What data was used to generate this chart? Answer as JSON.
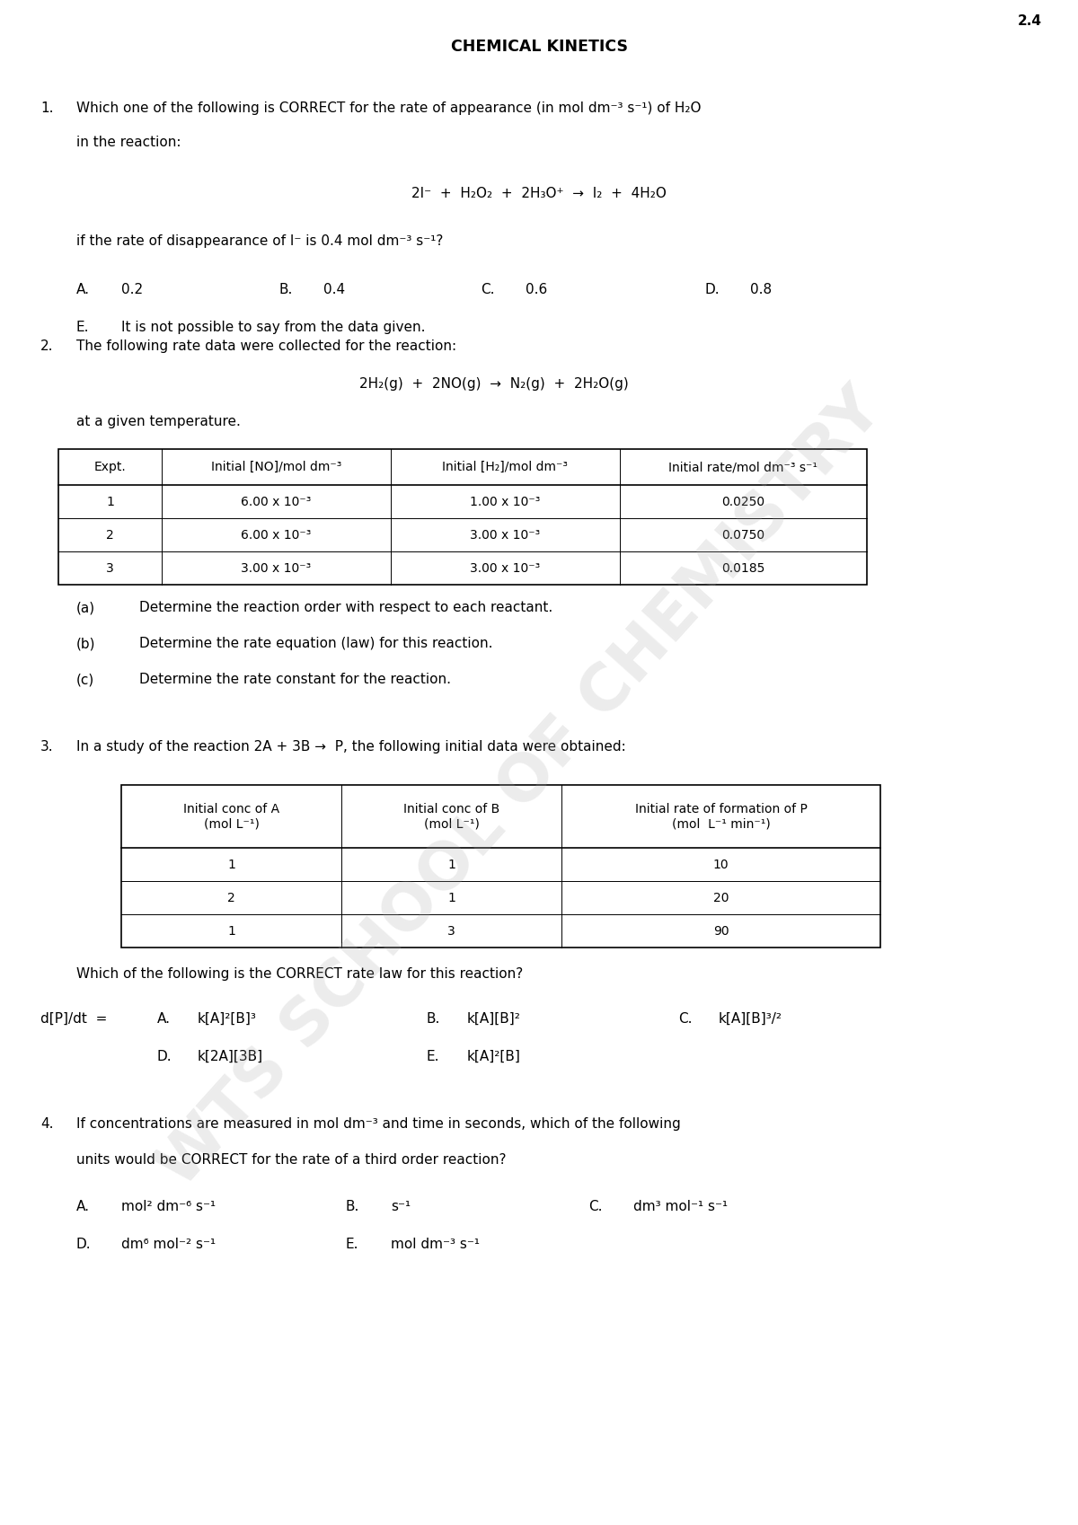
{
  "page_number": "2.4",
  "title": "CHEMICAL KINETICS",
  "background_color": "#ffffff",
  "watermark_text": "WTS SCHOOL OF CHEMISTRY",
  "q1": {
    "number": "1.",
    "line1": "Which one of the following is CORRECT for the rate of appearance (in mol dm⁻³ s⁻¹) of H₂O",
    "line2": "in the reaction:",
    "equation": "2I⁻  +  H₂O₂  +  2H₃O⁺  →  I₂  +  4H₂O",
    "cond": "if the rate of disappearance of I⁻ is 0.4 mol dm⁻³ s⁻¹?",
    "opt_row1": [
      [
        "A.",
        "0.2"
      ],
      [
        "B.",
        "0.4"
      ],
      [
        "C.",
        "0.6"
      ],
      [
        "D.",
        "0.8"
      ]
    ],
    "opt_row2": [
      [
        "E.",
        "It is not possible to say from the data given."
      ]
    ]
  },
  "q2": {
    "number": "2.",
    "line1": "The following rate data were collected for the reaction:",
    "equation": "2H₂(g)  +  2NO(g)  →  N₂(g)  +  2H₂O(g)",
    "line2": "at a given temperature.",
    "table_headers": [
      "Expt.",
      "Initial [NO]/mol dm⁻³",
      "Initial [H₂]/mol dm⁻³",
      "Initial rate/mol dm⁻³ s⁻¹"
    ],
    "table_data": [
      [
        "1",
        "6.00 x 10⁻³",
        "1.00 x 10⁻³",
        "0.0250"
      ],
      [
        "2",
        "6.00 x 10⁻³",
        "3.00 x 10⁻³",
        "0.0750"
      ],
      [
        "3",
        "3.00 x 10⁻³",
        "3.00 x 10⁻³",
        "0.0185"
      ]
    ],
    "sub_qs": [
      [
        "(a)",
        "Determine the reaction order with respect to each reactant."
      ],
      [
        "(b)",
        "Determine the rate equation (law) for this reaction."
      ],
      [
        "(c)",
        "Determine the rate constant for the reaction."
      ]
    ]
  },
  "q3": {
    "number": "3.",
    "line1": "In a study of the reaction 2A + 3B →  P, the following initial data were obtained:",
    "table_headers": [
      "Initial conc of A\n(mol L⁻¹)",
      "Initial conc of B\n(mol L⁻¹)",
      "Initial rate of formation of P\n(mol  L⁻¹ min⁻¹)"
    ],
    "table_data": [
      [
        "1",
        "1",
        "10"
      ],
      [
        "2",
        "1",
        "20"
      ],
      [
        "1",
        "3",
        "90"
      ]
    ],
    "line2": "Which of the following is the CORRECT rate law for this reaction?",
    "prefix": "d[P]/dt  =",
    "opt_row1": [
      [
        "A.",
        "k[A]²[B]³"
      ],
      [
        "B.",
        "k[A][B]²"
      ],
      [
        "C.",
        "k[A][B]³/²"
      ]
    ],
    "opt_row2": [
      [
        "D.",
        "k[2A][3B]"
      ],
      [
        "E.",
        "k[A]²[B]"
      ]
    ]
  },
  "q4": {
    "number": "4.",
    "line1": "If concentrations are measured in mol dm⁻³ and time in seconds, which of the following",
    "line2": "units would be CORRECT for the rate of a third order reaction?",
    "opt_row1": [
      [
        "A.",
        "mol² dm⁻⁶ s⁻¹"
      ],
      [
        "B.",
        "s⁻¹"
      ],
      [
        "C.",
        "dm³ mol⁻¹ s⁻¹"
      ]
    ],
    "opt_row2": [
      [
        "D.",
        "dm⁶ mol⁻² s⁻¹"
      ],
      [
        "E.",
        "mol dm⁻³ s⁻¹"
      ]
    ]
  }
}
